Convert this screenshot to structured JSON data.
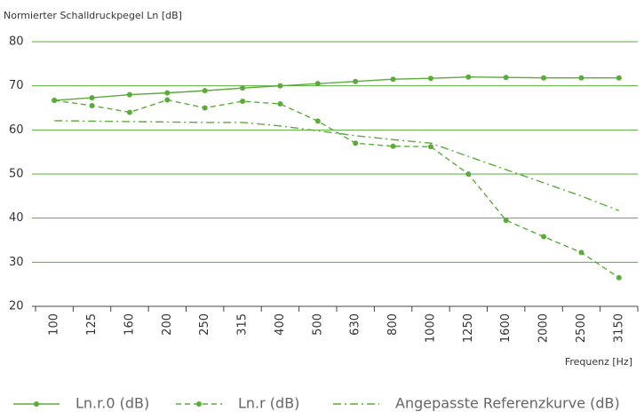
{
  "chart_data": {
    "type": "line",
    "y_label": "Normierter Schalldruckpegel Ln [dB]",
    "x_label": "Frequenz [Hz]",
    "categories": [
      "100",
      "125",
      "160",
      "200",
      "250",
      "315",
      "400",
      "500",
      "630",
      "800",
      "1000",
      "1250",
      "1600",
      "2000",
      "2500",
      "3150"
    ],
    "series": [
      {
        "name": "Ln.r.0 (dB)",
        "color": "#5aab3a",
        "linestyle": "solid",
        "markers": true,
        "values": [
          66.7,
          67.3,
          68,
          68.4,
          68.9,
          69.5,
          70,
          70.5,
          71,
          71.5,
          71.7,
          72,
          71.9,
          71.8,
          71.8,
          71.8
        ]
      },
      {
        "name": "Ln.r (dB)",
        "color": "#5aab3a",
        "linestyle": "dashed",
        "markers": true,
        "values": [
          66.7,
          65.5,
          64,
          66.8,
          65,
          66.5,
          65.9,
          62,
          57,
          56.3,
          56.2,
          50,
          39.5,
          35.8,
          32.2,
          26.5
        ]
      },
      {
        "name": "Angepasste Referenzkurve (dB)",
        "color": "#5aab3a",
        "linestyle": "dashdot",
        "markers": false,
        "values": [
          62.1,
          62,
          61.9,
          61.8,
          61.7,
          61.7,
          60.9,
          59.8,
          58.7,
          57.8,
          57,
          54,
          51,
          48,
          45,
          41.7
        ]
      }
    ],
    "ylim": [
      20,
      80
    ],
    "yticks": [
      20,
      30,
      40,
      50,
      60,
      70,
      80
    ],
    "grid": true,
    "grid_color": "#5aab3a"
  }
}
